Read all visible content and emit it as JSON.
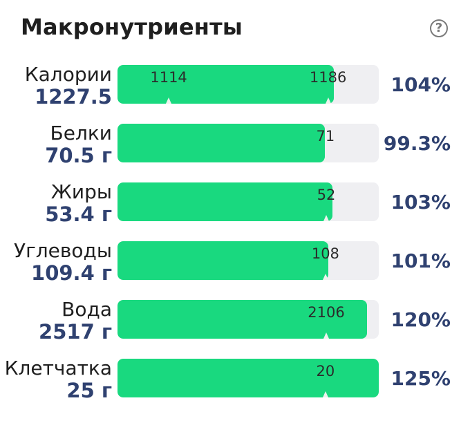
{
  "header": {
    "title": "Макронутриенты",
    "help_glyph": "?"
  },
  "colors": {
    "fill": "#19d97f",
    "track": "#efeff2",
    "accent_text": "#2f4170"
  },
  "rows": [
    {
      "label": "Калории",
      "amount": "1227.5",
      "percent": "104%",
      "fill": 0.827,
      "markers": [
        {
          "text": "1114",
          "pos": 0.196
        },
        {
          "text": "1186",
          "pos": 0.806
        }
      ]
    },
    {
      "label": "Белки",
      "amount": "70.5 г",
      "percent": "99.3%",
      "fill": 0.794,
      "markers": [
        {
          "text": "71",
          "pos": 0.796
        }
      ]
    },
    {
      "label": "Жиры",
      "amount": "53.4 г",
      "percent": "103%",
      "fill": 0.823,
      "markers": [
        {
          "text": "52",
          "pos": 0.799
        }
      ]
    },
    {
      "label": "Углеводы",
      "amount": "109.4 г",
      "percent": "101%",
      "fill": 0.807,
      "markers": [
        {
          "text": "108",
          "pos": 0.796
        }
      ]
    },
    {
      "label": "Вода",
      "amount": "2517 г",
      "percent": "120%",
      "fill": 0.955,
      "markers": [
        {
          "text": "2106",
          "pos": 0.799
        }
      ]
    },
    {
      "label": "Клетчатка",
      "amount": "25 г",
      "percent": "125%",
      "fill": 1.0,
      "markers": [
        {
          "text": "20",
          "pos": 0.796
        }
      ]
    }
  ]
}
